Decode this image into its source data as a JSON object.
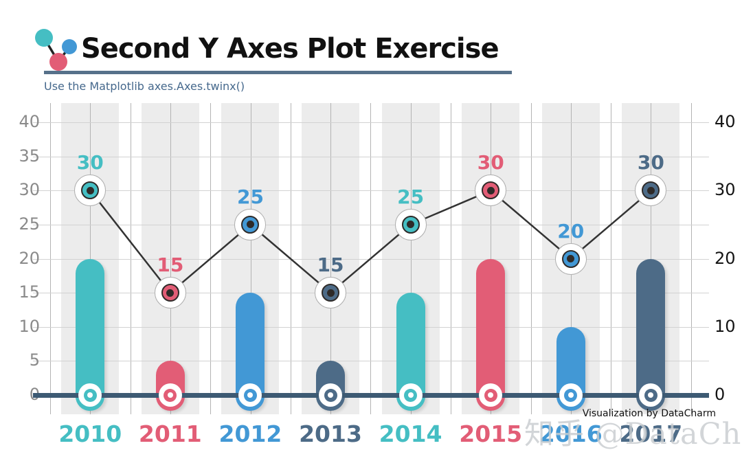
{
  "header": {
    "title": "Second Y Axes Plot Exercise",
    "subtitle": "Use the Matplotlib axes.Axes.twinx()"
  },
  "footer": {
    "credit": "Visualization by DataCharm",
    "watermark": "知乎 @DataCharm"
  },
  "colors": {
    "teal": "#45bec3",
    "red": "#e25d76",
    "blue": "#4298d5",
    "slate": "#4d6b87",
    "zero_line": "#3d5a73",
    "title_underline": "#56718a",
    "subtitle_text": "#45688c",
    "band": "#ececec",
    "h_grid": "#d2d2d2",
    "v_grid": "#b3b3b3",
    "left_tick_text": "#8a8a8a",
    "right_tick_text": "#141414",
    "line": "#333333",
    "marker_ring": "#afafaf",
    "marker_core": "#2e2a28"
  },
  "logo": {
    "icon": "molecule-icon",
    "circle_colors": [
      "teal",
      "blue",
      "red"
    ]
  },
  "chart_data": {
    "type": "bar",
    "subtype": "dual-axis lollipop bars + line (matplotlib twinx)",
    "title": "Second Y Axes Plot Exercise",
    "categories": [
      "2010",
      "2011",
      "2012",
      "2013",
      "2014",
      "2015",
      "2016",
      "2017"
    ],
    "category_color_keys": [
      "teal",
      "red",
      "blue",
      "slate",
      "teal",
      "red",
      "blue",
      "slate"
    ],
    "series": [
      {
        "name": "bars-left-axis",
        "type": "bar",
        "values": [
          20,
          5,
          15,
          5,
          15,
          20,
          10,
          20
        ]
      },
      {
        "name": "line-right-axis",
        "type": "line",
        "values": [
          30,
          15,
          25,
          15,
          25,
          30,
          20,
          30
        ]
      }
    ],
    "point_labels": [
      "30",
      "15",
      "25",
      "15",
      "25",
      "30",
      "20",
      "30"
    ],
    "left_axis": {
      "ticks": [
        0,
        5,
        10,
        15,
        20,
        25,
        30,
        35,
        40
      ],
      "range": [
        -2.8,
        42.8
      ]
    },
    "right_axis": {
      "ticks": [
        0,
        10,
        20,
        30,
        40
      ],
      "range": [
        -2.8,
        42.8
      ]
    },
    "grid": true,
    "zero_line": true,
    "legend": "none"
  }
}
